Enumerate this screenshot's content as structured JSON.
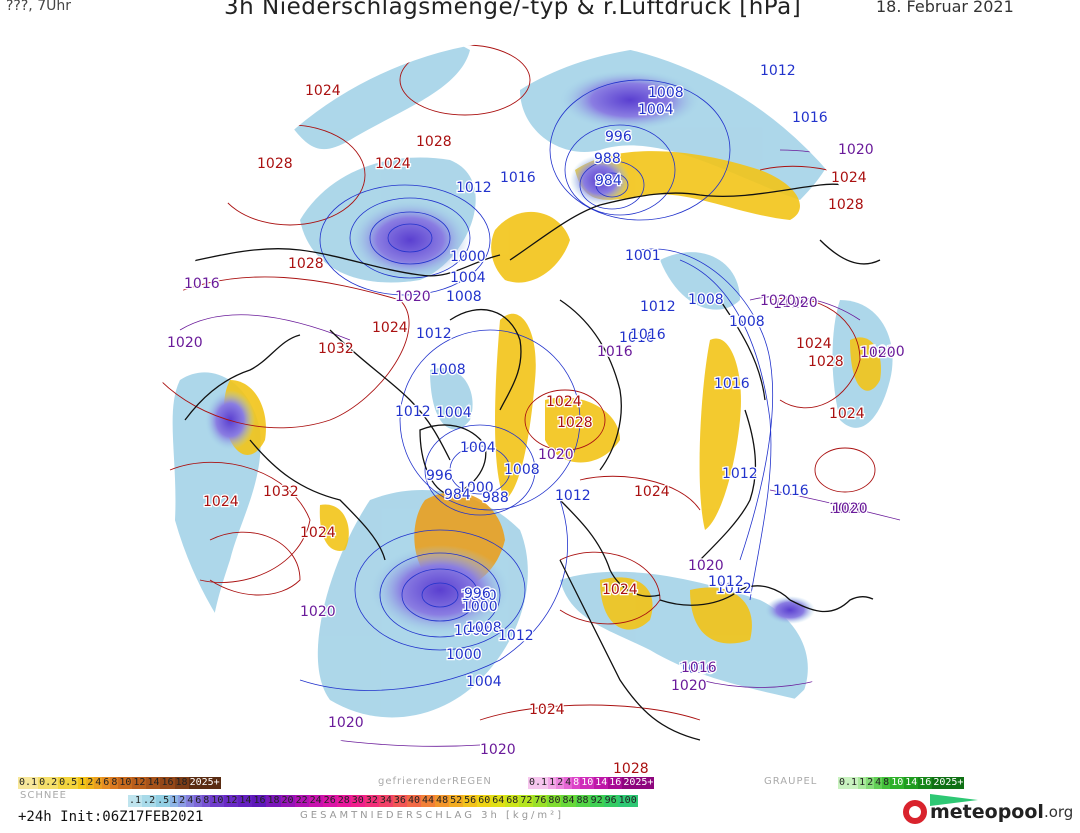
{
  "header": {
    "model_time": "???, 7Uhr",
    "title": "3h Niederschlagsmenge/-typ & r.Luftdruck [hPa]",
    "date": "18. Februar 2021"
  },
  "colors": {
    "low_isobar": "#2233cc",
    "high_isobar": "#aa1111",
    "mid_isobar": "#6a1b9a",
    "coast": "#111111",
    "snow_light": "#9fd0e6",
    "rain_yellow": "#f2c418",
    "rain_orange": "#e9a020",
    "heavy_purple": "#7b6fd6"
  },
  "isobar_labels": [
    {
      "text": "1024",
      "type": "high"
    },
    {
      "text": "1028",
      "type": "high"
    },
    {
      "text": "1024",
      "type": "high"
    },
    {
      "text": "1028",
      "type": "high"
    },
    {
      "text": "1028",
      "type": "high"
    },
    {
      "text": "1024",
      "type": "high"
    },
    {
      "text": "1032",
      "type": "high"
    },
    {
      "text": "1024",
      "type": "high"
    },
    {
      "text": "1028",
      "type": "high"
    },
    {
      "text": "1024",
      "type": "high"
    },
    {
      "text": "1032",
      "type": "high"
    },
    {
      "text": "1024",
      "type": "high"
    },
    {
      "text": "1024",
      "type": "high"
    },
    {
      "text": "1024",
      "type": "high"
    },
    {
      "text": "1024",
      "type": "high"
    },
    {
      "text": "1028",
      "type": "high"
    },
    {
      "text": "1024",
      "type": "high"
    },
    {
      "text": "1024",
      "type": "high"
    },
    {
      "text": "1028",
      "type": "high"
    },
    {
      "text": "1024",
      "type": "high"
    },
    {
      "text": "1028",
      "type": "high"
    },
    {
      "text": "1012",
      "type": "low"
    },
    {
      "text": "1008",
      "type": "low"
    },
    {
      "text": "1004",
      "type": "low"
    },
    {
      "text": "996",
      "type": "low"
    },
    {
      "text": "988",
      "type": "low"
    },
    {
      "text": "984",
      "type": "low"
    },
    {
      "text": "1016",
      "type": "low"
    },
    {
      "text": "1012",
      "type": "low"
    },
    {
      "text": "1000",
      "type": "low"
    },
    {
      "text": "1004",
      "type": "low"
    },
    {
      "text": "1008",
      "type": "low"
    },
    {
      "text": "1016",
      "type": "low"
    },
    {
      "text": "1012",
      "type": "low"
    },
    {
      "text": "1008",
      "type": "low"
    },
    {
      "text": "1004",
      "type": "low"
    },
    {
      "text": "1012",
      "type": "low"
    },
    {
      "text": "1004",
      "type": "low"
    },
    {
      "text": "1000",
      "type": "low"
    },
    {
      "text": "996",
      "type": "low"
    },
    {
      "text": "984",
      "type": "low"
    },
    {
      "text": "988",
      "type": "low"
    },
    {
      "text": "1008",
      "type": "low"
    },
    {
      "text": "1000",
      "type": "low"
    },
    {
      "text": "1012",
      "type": "low"
    },
    {
      "text": "1000",
      "type": "low"
    },
    {
      "text": "1008",
      "type": "low"
    },
    {
      "text": "996",
      "type": "low"
    },
    {
      "text": "1000",
      "type": "low"
    },
    {
      "text": "1008",
      "type": "low"
    },
    {
      "text": "1012",
      "type": "low"
    },
    {
      "text": "1004",
      "type": "low"
    },
    {
      "text": "1016",
      "type": "low"
    },
    {
      "text": "1012",
      "type": "low"
    },
    {
      "text": "1001",
      "type": "low"
    },
    {
      "text": "1008",
      "type": "low"
    },
    {
      "text": "1012",
      "type": "low"
    },
    {
      "text": "1016",
      "type": "low"
    },
    {
      "text": "1016",
      "type": "low"
    },
    {
      "text": "1008",
      "type": "low"
    },
    {
      "text": "1016",
      "type": "low"
    },
    {
      "text": "1012",
      "type": "low"
    },
    {
      "text": "1016",
      "type": "low"
    },
    {
      "text": "1012",
      "type": "low"
    },
    {
      "text": "1016",
      "type": "mid"
    },
    {
      "text": "1020",
      "type": "mid"
    },
    {
      "text": "1020",
      "type": "mid"
    },
    {
      "text": "1016",
      "type": "mid"
    },
    {
      "text": "1020",
      "type": "mid"
    },
    {
      "text": "1020",
      "type": "mid"
    },
    {
      "text": "1020",
      "type": "mid"
    },
    {
      "text": "1020",
      "type": "mid"
    },
    {
      "text": "1020",
      "type": "mid"
    },
    {
      "text": "1020",
      "type": "mid"
    },
    {
      "text": "1020",
      "type": "mid"
    },
    {
      "text": "1020",
      "type": "mid"
    },
    {
      "text": "1020",
      "type": "mid"
    },
    {
      "text": "1020",
      "type": "mid"
    },
    {
      "text": "1016",
      "type": "mid"
    },
    {
      "text": "1020",
      "type": "mid"
    },
    {
      "text": "1020",
      "type": "mid"
    },
    {
      "text": "1020",
      "type": "mid"
    },
    {
      "text": "1016",
      "type": "mid"
    }
  ],
  "legend": {
    "snow_title": "SCHNEE",
    "snow_values": [
      "0.1",
      "0.2",
      "0.5",
      "1",
      "2",
      "4",
      "6",
      "8",
      "10",
      "12",
      "14",
      "16",
      "18",
      "2025+"
    ],
    "snow_colors": [
      "#f7e79a",
      "#f5df6b",
      "#f3d43e",
      "#f2c418",
      "#efb21a",
      "#eba020",
      "#e68d22",
      "#dc7a20",
      "#c96a1d",
      "#b85d1b",
      "#a6521a",
      "#944718",
      "#7c3c16",
      "#5a2c12"
    ],
    "freezing_title": "gefrierenderREGEN",
    "freezing_values": [
      "0.1",
      "1",
      "2",
      "4",
      "8",
      "10",
      "14",
      "16",
      "2025+"
    ],
    "freezing_colors": [
      "#f6c6ee",
      "#f1a6e6",
      "#ec86de",
      "#e566d4",
      "#dc44c8",
      "#cf2bb9",
      "#be16a8",
      "#a70a94",
      "#8e067e"
    ],
    "graupel_title": "GRAUPEL",
    "graupel_values": [
      "0.1",
      "1",
      "2",
      "4",
      "8",
      "10",
      "14",
      "16",
      "2025+"
    ],
    "graupel_colors": [
      "#c9f2c0",
      "#a9e89c",
      "#86dc79",
      "#62cf56",
      "#43c13a",
      "#2eb029",
      "#1f9c1f",
      "#168619",
      "#0f7014"
    ],
    "total_values": [
      ".1",
      ".2",
      ".5",
      "1",
      "2",
      "4",
      "6",
      "8",
      "10",
      "12",
      "14",
      "16",
      "18",
      "20",
      "22",
      "24",
      "26",
      "28",
      "30",
      "32",
      "34",
      "36",
      "40",
      "44",
      "48",
      "52",
      "56",
      "60",
      "64",
      "68",
      "72",
      "76",
      "80",
      "84",
      "88",
      "92",
      "96",
      "100"
    ],
    "total_colors": [
      "#bfe4ee",
      "#a8dae9",
      "#92cfe3",
      "#8fb5e6",
      "#8b9be4",
      "#8580de",
      "#7e68d8",
      "#7752d2",
      "#703dcc",
      "#6a2bc6",
      "#6420c0",
      "#5e18ba",
      "#7a16ba",
      "#9614b8",
      "#b212b4",
      "#c812ae",
      "#da14a6",
      "#e8189c",
      "#f0208c",
      "#f2307a",
      "#f24268",
      "#f25656",
      "#f26a46",
      "#f28038",
      "#f2962c",
      "#f2ac22",
      "#f2c21a",
      "#eed416",
      "#e0e016",
      "#cce41a",
      "#b4e420",
      "#9ae028",
      "#80dc30",
      "#68d83a",
      "#52d446",
      "#40d054",
      "#34cc64",
      "#2ec874"
    ],
    "total_title": "GESAMTNIEDERSCHLAG 3h [kg/m²]"
  },
  "footer": {
    "init": "+24h Init:06Z17FEB2021",
    "logo_main": "meteopool",
    "logo_tld": ".org"
  }
}
